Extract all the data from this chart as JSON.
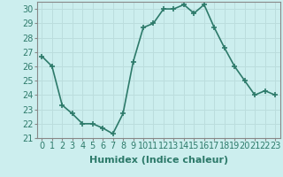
{
  "x": [
    0,
    1,
    2,
    3,
    4,
    5,
    6,
    7,
    8,
    9,
    10,
    11,
    12,
    13,
    14,
    15,
    16,
    17,
    18,
    19,
    20,
    21,
    22,
    23
  ],
  "y": [
    26.7,
    26.0,
    23.3,
    22.7,
    22.0,
    22.0,
    21.7,
    21.3,
    22.7,
    26.3,
    28.7,
    29.0,
    30.0,
    30.0,
    30.3,
    29.7,
    30.3,
    28.7,
    27.3,
    26.0,
    25.0,
    24.0,
    24.3,
    24.0
  ],
  "line_color": "#2d7a6a",
  "marker": "+",
  "marker_size": 4,
  "bg_color": "#cceeee",
  "grid_color": "#bbdddd",
  "xlabel": "Humidex (Indice chaleur)",
  "ylim": [
    21,
    30.5
  ],
  "xlim": [
    -0.5,
    23.5
  ],
  "yticks": [
    21,
    22,
    23,
    24,
    25,
    26,
    27,
    28,
    29,
    30
  ],
  "xticks": [
    0,
    1,
    2,
    3,
    4,
    5,
    6,
    7,
    8,
    9,
    10,
    11,
    12,
    13,
    14,
    15,
    16,
    17,
    18,
    19,
    20,
    21,
    22,
    23
  ],
  "xlabel_fontsize": 8,
  "tick_fontsize": 7,
  "line_width": 1.2,
  "spine_color": "#888888"
}
